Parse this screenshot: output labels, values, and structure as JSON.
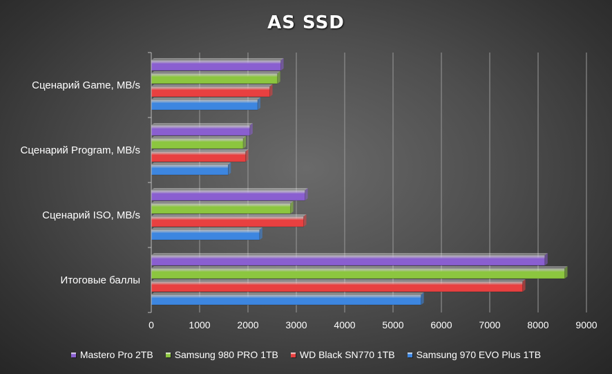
{
  "chart_data": {
    "type": "bar",
    "orientation": "horizontal",
    "title": "AS SSD",
    "categories": [
      "Сценарий Game, MB/s",
      "Сценарий Program, MB/s",
      "Сценарий ISO, MB/s",
      "Итоговые баллы"
    ],
    "series": [
      {
        "name": "Mastero Pro 2TB",
        "color": "#8a5fd0",
        "values": [
          2680,
          2040,
          3180,
          8140
        ]
      },
      {
        "name": "Samsung 980 PRO 1TB",
        "color": "#8cc63f",
        "values": [
          2610,
          1900,
          2880,
          8550
        ]
      },
      {
        "name": "WD Black SN770 1TB",
        "color": "#e84040",
        "values": [
          2450,
          1950,
          3150,
          7680
        ]
      },
      {
        "name": "Samsung 970 EVO Plus 1TB",
        "color": "#3d86e0",
        "values": [
          2200,
          1590,
          2240,
          5580
        ]
      }
    ],
    "xlim": [
      0,
      9000
    ],
    "xticks": [
      0,
      1000,
      2000,
      3000,
      4000,
      5000,
      6000,
      7000,
      8000,
      9000
    ],
    "grid": "vertical",
    "legend_position": "bottom"
  }
}
